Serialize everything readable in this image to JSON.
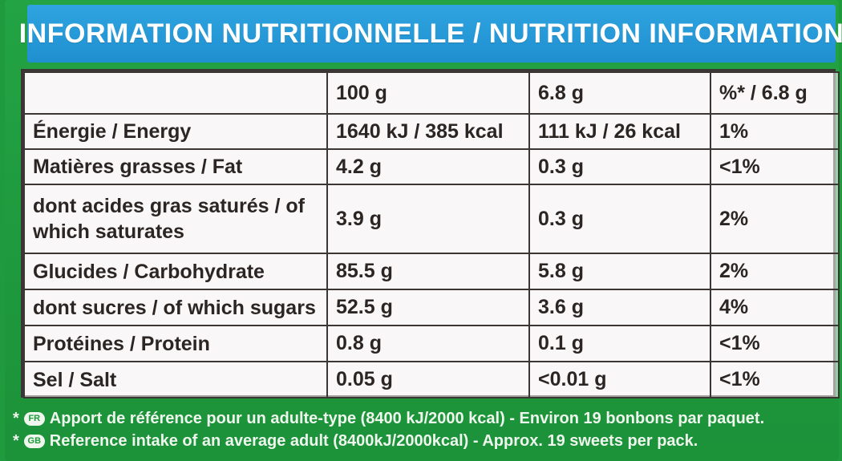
{
  "header": {
    "title": "INFORMATION NUTRITIONNELLE / NUTRITION INFORMATION"
  },
  "table": {
    "columns": [
      "",
      "100 g",
      "6.8 g",
      "%* / 6.8 g"
    ],
    "rows": [
      {
        "label": "Énergie / Energy",
        "per100": "1640 kJ / 385 kcal",
        "perPortion": "111 kJ / 26 kcal",
        "ri": "1%"
      },
      {
        "label": "Matières grasses / Fat",
        "per100": "4.2 g",
        "perPortion": "0.3 g",
        "ri": "<1%"
      },
      {
        "label": "dont acides gras saturés / of which saturates",
        "per100": "3.9 g",
        "perPortion": "0.3 g",
        "ri": "2%"
      },
      {
        "label": "Glucides / Carbohydrate",
        "per100": "85.5 g",
        "perPortion": "5.8 g",
        "ri": "2%"
      },
      {
        "label": "dont sucres / of which sugars",
        "per100": "52.5 g",
        "perPortion": "3.6 g",
        "ri": "4%"
      },
      {
        "label": "Protéines / Protein",
        "per100": "0.8 g",
        "perPortion": "0.1 g",
        "ri": "<1%"
      },
      {
        "label": "Sel / Salt",
        "per100": "0.05 g",
        "perPortion": "<0.01 g",
        "ri": "<1%"
      }
    ]
  },
  "footer": {
    "fr": {
      "mark": "*",
      "badge": "FR",
      "text": "Apport de référence pour un adulte-type (8400 kJ/2000 kcal) - Environ 19 bonbons par paquet."
    },
    "gb": {
      "mark": "*",
      "badge": "GB",
      "text": "Reference intake of an average adult (8400kJ/2000kcal) - Approx. 19 sweets per pack."
    }
  }
}
